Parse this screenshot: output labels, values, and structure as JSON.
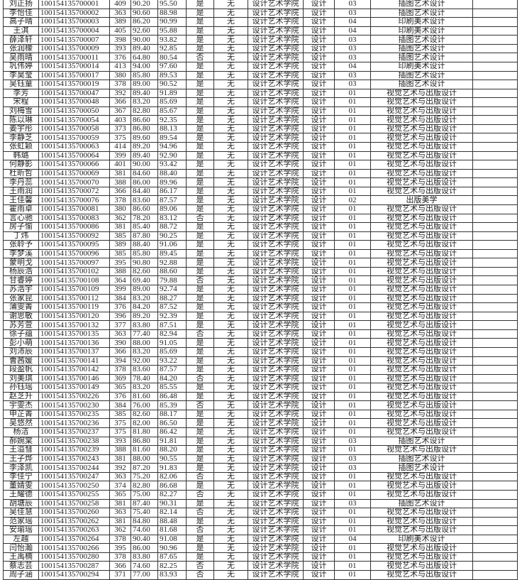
{
  "rows": [
    [
      "刘正扬",
      "100154135700001",
      "409",
      "90.20",
      "95.50",
      "是",
      "无",
      "设计艺术学院",
      "设计",
      "03",
      "插图艺术设计",
      ""
    ],
    [
      "李怡佳",
      "100154135700002",
      "363",
      "90.60",
      "88.98",
      "是",
      "无",
      "设计艺术学院",
      "设计",
      "03",
      "插图艺术设计",
      ""
    ],
    [
      "高子晴",
      "100154135700003",
      "389",
      "86.20",
      "90.99",
      "是",
      "无",
      "设计艺术学院",
      "设计",
      "04",
      "印刷美术设计",
      ""
    ],
    [
      "王淇",
      "100154135700004",
      "405",
      "92.60",
      "95.88",
      "是",
      "无",
      "设计艺术学院",
      "设计",
      "04",
      "印刷美术设计",
      ""
    ],
    [
      "薛泽轩",
      "100154135700007",
      "398",
      "90.00",
      "93.82",
      "是",
      "无",
      "设计艺术学院",
      "设计",
      "03",
      "插图艺术设计",
      ""
    ],
    [
      "张润檬",
      "100154135700009",
      "393",
      "89.40",
      "92.85",
      "是",
      "无",
      "设计艺术学院",
      "设计",
      "03",
      "插图艺术设计",
      ""
    ],
    [
      "吴雨晴",
      "100154135700011",
      "376",
      "64.80",
      "80.54",
      "否",
      "无",
      "设计艺术学院",
      "设计",
      "03",
      "插图艺术设计",
      ""
    ],
    [
      "巩伟婷",
      "100154135700014",
      "413",
      "94.00",
      "97.60",
      "是",
      "无",
      "设计艺术学院",
      "设计",
      "04",
      "印刷美术设计",
      ""
    ],
    [
      "李昊莹",
      "100154135700017",
      "380",
      "85.80",
      "89.53",
      "是",
      "无",
      "设计艺术学院",
      "设计",
      "03",
      "插图艺术设计",
      ""
    ],
    [
      "吴钰童",
      "100154135700019",
      "378",
      "89.00",
      "90.52",
      "是",
      "无",
      "设计艺术学院",
      "设计",
      "03",
      "插图艺术设计",
      ""
    ],
    [
      "李芳",
      "100154135700047",
      "392",
      "89.40",
      "91.89",
      "是",
      "无",
      "设计艺术学院",
      "设计",
      "01",
      "视觉艺术与出版设计",
      ""
    ],
    [
      "宋程",
      "100154135700048",
      "366",
      "83.20",
      "85.69",
      "是",
      "无",
      "设计艺术学院",
      "设计",
      "01",
      "视觉艺术与出版设计",
      ""
    ],
    [
      "刘梅雪",
      "100154135700050",
      "367",
      "82.80",
      "85.67",
      "是",
      "无",
      "设计艺术学院",
      "设计",
      "01",
      "视觉艺术与出版设计",
      ""
    ],
    [
      "陈以琳",
      "100154135700054",
      "403",
      "86.60",
      "92.35",
      "是",
      "无",
      "设计艺术学院",
      "设计",
      "01",
      "视觉艺术与出版设计",
      ""
    ],
    [
      "姜宇彤",
      "100154135700058",
      "373",
      "86.80",
      "88.13",
      "是",
      "无",
      "设计艺术学院",
      "设计",
      "01",
      "视觉艺术与出版设计",
      ""
    ],
    [
      "李静芝",
      "100154135700059",
      "375",
      "89.60",
      "89.54",
      "是",
      "无",
      "设计艺术学院",
      "设计",
      "01",
      "视觉艺术与出版设计",
      ""
    ],
    [
      "张虹颖",
      "100154135700063",
      "414",
      "89.20",
      "94.96",
      "是",
      "无",
      "设计艺术学院",
      "设计",
      "01",
      "视觉艺术与出版设计",
      ""
    ],
    [
      "韩璐",
      "100154135700064",
      "399",
      "89.40",
      "92.90",
      "是",
      "无",
      "设计艺术学院",
      "设计",
      "01",
      "视觉艺术与出版设计",
      ""
    ],
    [
      "何静影",
      "100154135700066",
      "401",
      "90.00",
      "93.42",
      "是",
      "无",
      "设计艺术学院",
      "设计",
      "01",
      "视觉艺术与出版设计",
      ""
    ],
    [
      "杜昕哲",
      "100154135700069",
      "381",
      "84.60",
      "88.40",
      "是",
      "无",
      "设计艺术学院",
      "设计",
      "01",
      "视觉艺术与出版设计",
      ""
    ],
    [
      "李丹蕊",
      "100154135700070",
      "388",
      "86.00",
      "89.96",
      "是",
      "无",
      "设计艺术学院",
      "设计",
      "01",
      "视觉艺术与出版设计",
      ""
    ],
    [
      "王雨润",
      "100154135700072",
      "366",
      "84.40",
      "86.17",
      "是",
      "无",
      "设计艺术学院",
      "设计",
      "01",
      "视觉艺术与出版设计",
      ""
    ],
    [
      "王佳馨",
      "100154135700076",
      "378",
      "83.60",
      "87.57",
      "是",
      "无",
      "设计艺术学院",
      "设计",
      "02",
      "出版美学",
      ""
    ],
    [
      "霍雨卓",
      "100154135700081",
      "380",
      "86.60",
      "89.06",
      "是",
      "无",
      "设计艺术学院",
      "设计",
      "01",
      "视觉艺术与出版设计",
      ""
    ],
    [
      "言心驰",
      "100154135700083",
      "362",
      "78.20",
      "83.12",
      "否",
      "无",
      "设计艺术学院",
      "设计",
      "01",
      "视觉艺术与出版设计",
      ""
    ],
    [
      "房子愉",
      "100154135700086",
      "381",
      "85.40",
      "88.72",
      "是",
      "无",
      "设计艺术学院",
      "设计",
      "01",
      "视觉艺术与出版设计",
      ""
    ],
    [
      "丁炜",
      "100154135700092",
      "385",
      "87.80",
      "90.25",
      "是",
      "无",
      "设计艺术学院",
      "设计",
      "01",
      "视觉艺术与出版设计",
      ""
    ],
    [
      "张聆予",
      "100154135700095",
      "389",
      "88.40",
      "91.06",
      "是",
      "无",
      "设计艺术学院",
      "设计",
      "01",
      "视觉艺术与出版设计",
      ""
    ],
    [
      "李梦溪",
      "100154135700096",
      "385",
      "85.80",
      "89.45",
      "是",
      "无",
      "设计艺术学院",
      "设计",
      "01",
      "视觉艺术与出版设计",
      ""
    ],
    [
      "蒙明戈",
      "100154135700097",
      "395",
      "90.80",
      "92.88",
      "是",
      "无",
      "设计艺术学院",
      "设计",
      "01",
      "视觉艺术与出版设计",
      ""
    ],
    [
      "杨辰浩",
      "100154135700102",
      "388",
      "82.60",
      "88.60",
      "是",
      "无",
      "设计艺术学院",
      "设计",
      "01",
      "视觉艺术与出版设计",
      ""
    ],
    [
      "甘睿婷",
      "100154135700108",
      "364",
      "69.40",
      "79.88",
      "否",
      "无",
      "设计艺术学院",
      "设计",
      "01",
      "视觉艺术与出版设计",
      ""
    ],
    [
      "苏浩宇",
      "100154135700109",
      "399",
      "89.00",
      "92.74",
      "是",
      "无",
      "设计艺术学院",
      "设计",
      "01",
      "视觉艺术与出版设计",
      ""
    ],
    [
      "张家昆",
      "100154135700112",
      "384",
      "83.20",
      "88.27",
      "是",
      "无",
      "设计艺术学院",
      "设计",
      "01",
      "视觉艺术与出版设计",
      ""
    ],
    [
      "蒲雯菁",
      "100154135700119",
      "376",
      "84.20",
      "87.52",
      "是",
      "无",
      "设计艺术学院",
      "设计",
      "01",
      "视觉艺术与出版设计",
      ""
    ],
    [
      "谢思敏",
      "100154135700120",
      "396",
      "89.20",
      "92.39",
      "是",
      "无",
      "设计艺术学院",
      "设计",
      "01",
      "视觉艺术与出版设计",
      ""
    ],
    [
      "苏芳萱",
      "100154135700132",
      "377",
      "83.80",
      "87.51",
      "是",
      "无",
      "设计艺术学院",
      "设计",
      "01",
      "视觉艺术与出版设计",
      ""
    ],
    [
      "徐子蕴",
      "100154135700135",
      "363",
      "77.40",
      "82.94",
      "否",
      "无",
      "设计艺术学院",
      "设计",
      "01",
      "视觉艺术与出版设计",
      ""
    ],
    [
      "彭小萌",
      "100154135700136",
      "390",
      "88.00",
      "91.05",
      "是",
      "无",
      "设计艺术学院",
      "设计",
      "01",
      "视觉艺术与出版设计",
      ""
    ],
    [
      "刘沛辰",
      "100154135700137",
      "366",
      "83.20",
      "85.69",
      "是",
      "无",
      "设计艺术学院",
      "设计",
      "01",
      "视觉艺术与出版设计",
      ""
    ],
    [
      "曹茜媛",
      "100154135700141",
      "394",
      "92.00",
      "93.22",
      "是",
      "无",
      "设计艺术学院",
      "设计",
      "01",
      "视觉艺术与出版设计",
      ""
    ],
    [
      "段盈帆",
      "100154135700142",
      "378",
      "83.60",
      "87.57",
      "是",
      "无",
      "设计艺术学院",
      "设计",
      "01",
      "视觉艺术与出版设计",
      ""
    ],
    [
      "刘美琪",
      "100154135700146",
      "369",
      "78.40",
      "84.20",
      "否",
      "无",
      "设计艺术学院",
      "设计",
      "01",
      "视觉艺术与出版设计",
      ""
    ],
    [
      "孙钰瑶",
      "100154135700149",
      "365",
      "83.20",
      "85.55",
      "是",
      "无",
      "设计艺术学院",
      "设计",
      "01",
      "视觉艺术与出版设计",
      ""
    ],
    [
      "赵芝升",
      "100154135700226",
      "376",
      "81.60",
      "86.48",
      "是",
      "无",
      "设计艺术学院",
      "设计",
      "01",
      "视觉艺术与出版设计",
      ""
    ],
    [
      "宇雯杰",
      "100154135700230",
      "384",
      "76.00",
      "85.39",
      "否",
      "无",
      "设计艺术学院",
      "设计",
      "01",
      "视觉艺术与出版设计",
      ""
    ],
    [
      "申芷菁",
      "100154135700235",
      "385",
      "82.60",
      "88.17",
      "是",
      "无",
      "设计艺术学院",
      "设计",
      "01",
      "视觉艺术与出版设计",
      ""
    ],
    [
      "吴悠然",
      "100154135700236",
      "375",
      "82.00",
      "86.50",
      "是",
      "无",
      "设计艺术学院",
      "设计",
      "01",
      "视觉艺术与出版设计",
      ""
    ],
    [
      "杨洁",
      "100154135700237",
      "375",
      "81.80",
      "86.42",
      "是",
      "无",
      "设计艺术学院",
      "设计",
      "01",
      "视觉艺术与出版设计",
      ""
    ],
    [
      "郝婉棠",
      "100154135700238",
      "393",
      "86.80",
      "91.81",
      "是",
      "无",
      "设计艺术学院",
      "设计",
      "03",
      "插图艺术设计",
      ""
    ],
    [
      "王溢彗",
      "100154135700239",
      "388",
      "81.60",
      "88.20",
      "是",
      "无",
      "设计艺术学院",
      "设计",
      "01",
      "视觉艺术与出版设计",
      ""
    ],
    [
      "王子烨",
      "100154135700243",
      "381",
      "88.00",
      "90.55",
      "是",
      "无",
      "设计艺术学院",
      "设计",
      "03",
      "插图艺术设计",
      ""
    ],
    [
      "李泽凯",
      "100154135700244",
      "392",
      "87.20",
      "91.83",
      "是",
      "无",
      "设计艺术学院",
      "设计",
      "03",
      "插图艺术设计",
      ""
    ],
    [
      "李佳宁",
      "100154135700247",
      "363",
      "75.20",
      "82.06",
      "否",
      "无",
      "设计艺术学院",
      "设计",
      "01",
      "视觉艺术与出版设计",
      ""
    ],
    [
      "董婧雯",
      "100154135700250",
      "374",
      "82.80",
      "86.68",
      "是",
      "无",
      "设计艺术学院",
      "设计",
      "01",
      "视觉艺术与出版设计",
      ""
    ],
    [
      "王耀德",
      "100154135700255",
      "365",
      "75.00",
      "82.27",
      "否",
      "无",
      "设计艺术学院",
      "设计",
      "01",
      "视觉艺术与出版设计",
      ""
    ],
    [
      "胡塘辰",
      "100154135700258",
      "381",
      "87.40",
      "90.31",
      "是",
      "无",
      "设计艺术学院",
      "设计",
      "03",
      "插图艺术设计",
      ""
    ],
    [
      "吴佳慧",
      "100154135700260",
      "363",
      "75.40",
      "82.14",
      "否",
      "无",
      "设计艺术学院",
      "设计",
      "01",
      "视觉艺术与出版设计",
      ""
    ],
    [
      "范家瑶",
      "100154135700262",
      "381",
      "84.80",
      "88.48",
      "是",
      "无",
      "设计艺术学院",
      "设计",
      "01",
      "视觉艺术与出版设计",
      ""
    ],
    [
      "安瑜瑶",
      "100154135700263",
      "362",
      "74.60",
      "81.68",
      "否",
      "无",
      "设计艺术学院",
      "设计",
      "01",
      "视觉艺术与出版设计",
      ""
    ],
    [
      "左越",
      "100154135700264",
      "378",
      "90.40",
      "91.08",
      "是",
      "无",
      "设计艺术学院",
      "设计",
      "04",
      "印刷美术设计",
      ""
    ],
    [
      "闫怡瀚",
      "100154135700266",
      "395",
      "86.00",
      "90.96",
      "是",
      "无",
      "设计艺术学院",
      "设计",
      "01",
      "视觉艺术与出版设计",
      ""
    ],
    [
      "王禹楠",
      "100154135700280",
      "378",
      "83.80",
      "87.65",
      "是",
      "无",
      "设计艺术学院",
      "设计",
      "01",
      "视觉艺术与出版设计",
      ""
    ],
    [
      "蔡志芸",
      "100154135700287",
      "366",
      "74.60",
      "82.25",
      "否",
      "无",
      "设计艺术学院",
      "设计",
      "01",
      "视觉艺术与出版设计",
      ""
    ],
    [
      "周子涵",
      "100154135700294",
      "371",
      "77.00",
      "83.93",
      "否",
      "无",
      "设计艺术学院",
      "设计",
      "01",
      "视觉艺术与出版设计",
      ""
    ]
  ]
}
